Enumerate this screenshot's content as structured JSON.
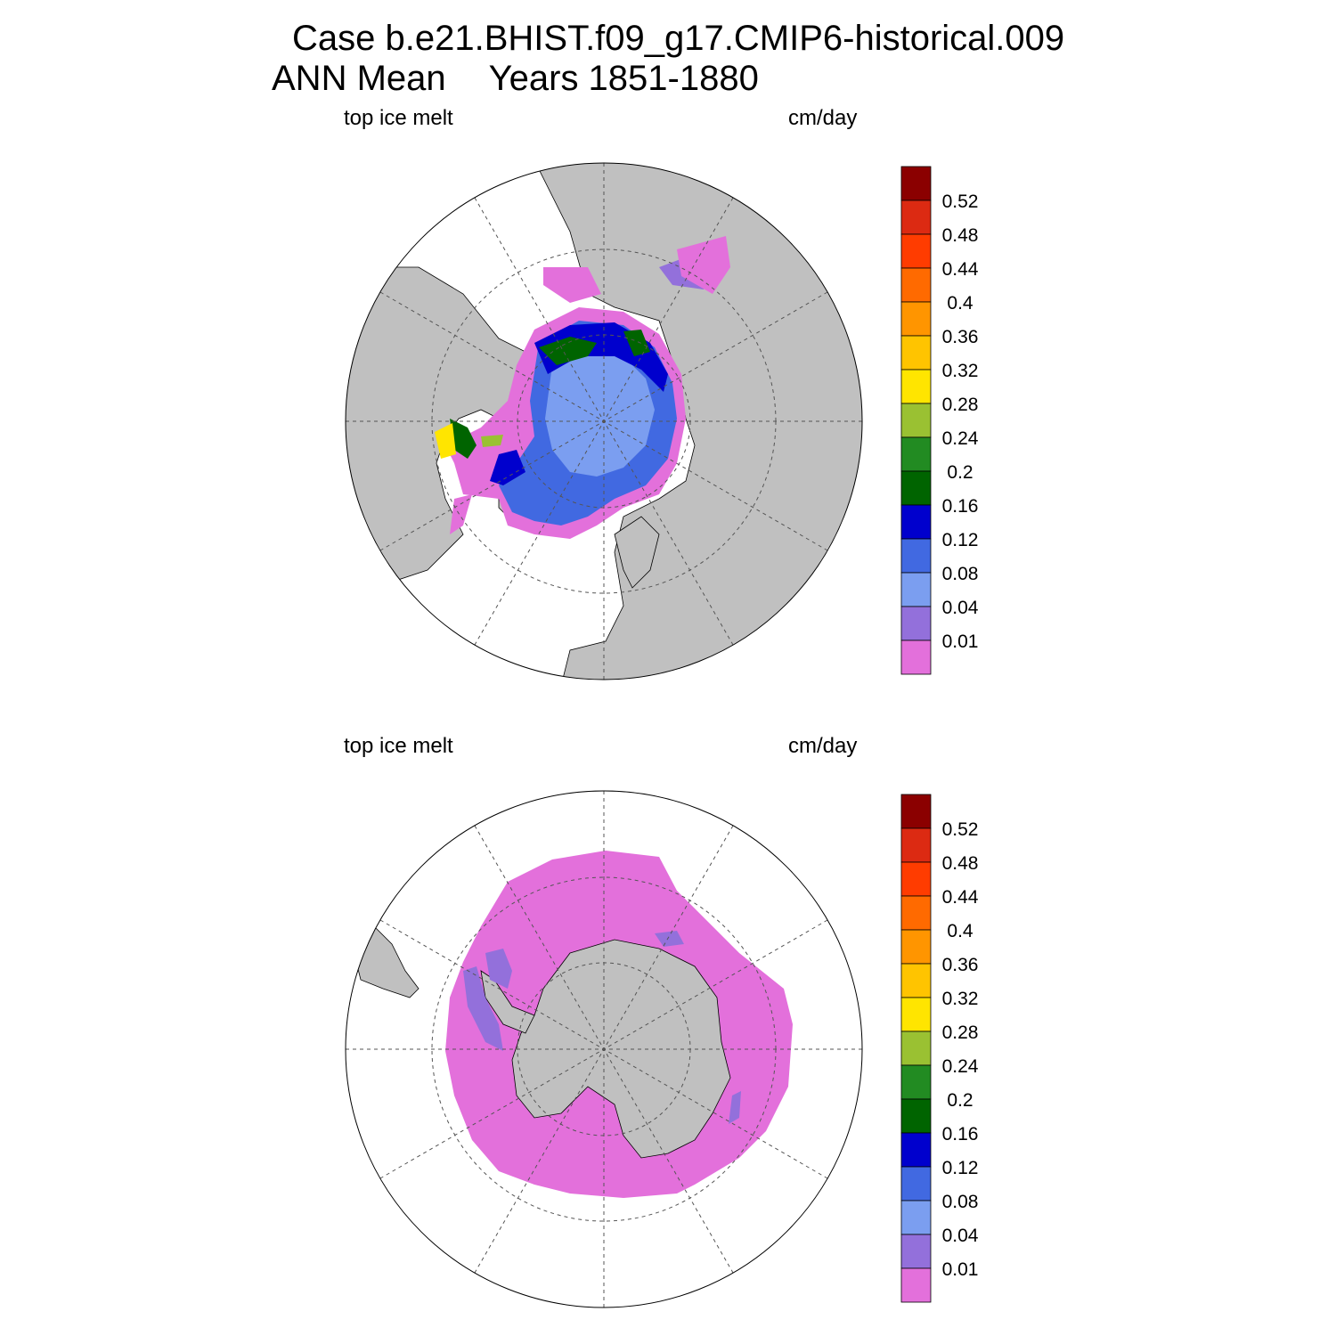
{
  "title": {
    "line1": "Case b.e21.BHIST.f09_g17.CMIP6-historical.009",
    "line2_a": "ANN Mean",
    "line2_b": "Years 1851-1880"
  },
  "panels": [
    {
      "hemisphere": "north",
      "left_label": "top ice melt",
      "right_label": "cm/day"
    },
    {
      "hemisphere": "south",
      "left_label": "top ice melt",
      "right_label": "cm/day"
    }
  ],
  "colorbar": {
    "labels": [
      "0.52",
      "0.48",
      "0.44",
      "0.4",
      "0.36",
      "0.32",
      "0.28",
      "0.24",
      "0.2",
      "0.16",
      "0.12",
      "0.08",
      "0.04",
      "0.01"
    ],
    "colors_top_to_bottom": [
      "#8b0000",
      "#dc2a12",
      "#ff3c00",
      "#ff6a00",
      "#ff9500",
      "#ffc400",
      "#ffe500",
      "#9ac132",
      "#228b22",
      "#006400",
      "#0000cd",
      "#4169e1",
      "#7b9ef0",
      "#9370db",
      "#e370db"
    ]
  },
  "colors": {
    "land": "#c0c0c0",
    "ocean": "#ffffff",
    "grid": "#555555"
  }
}
